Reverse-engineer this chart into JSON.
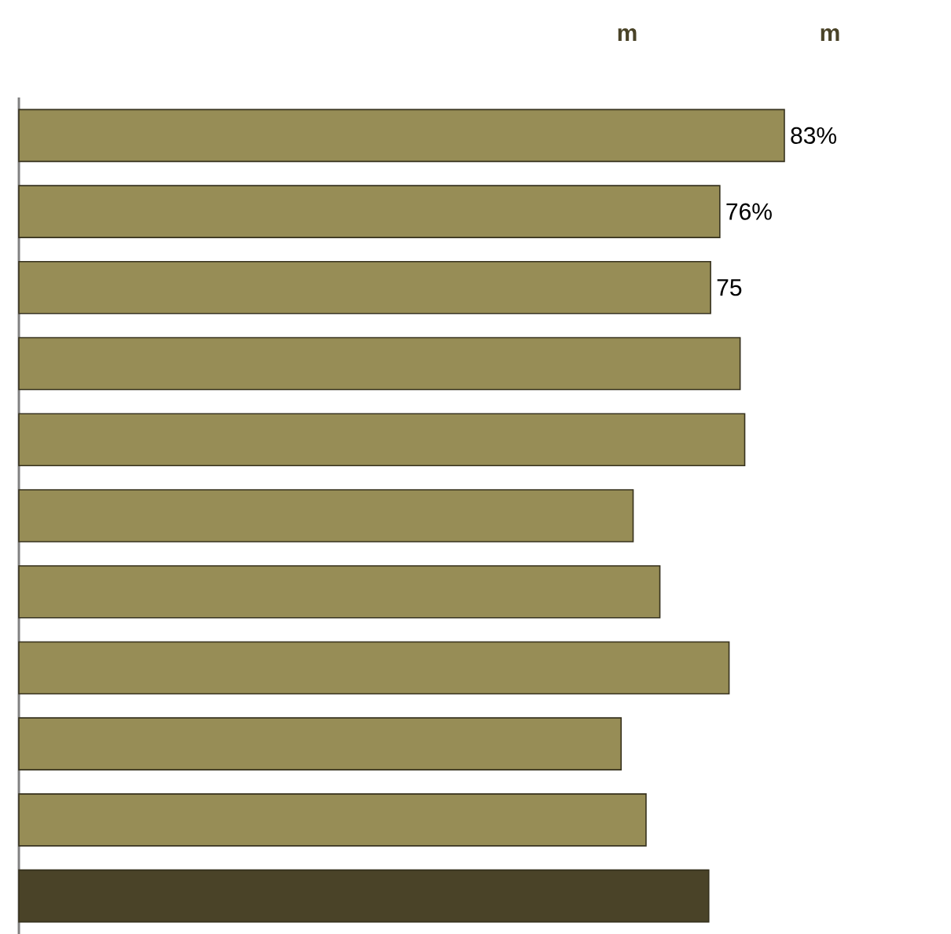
{
  "chart_data": {
    "type": "bar",
    "orientation": "horizontal",
    "categories": [
      null,
      null,
      null,
      null,
      null,
      null,
      null,
      null,
      null,
      null,
      null
    ],
    "values": [
      83,
      76,
      75,
      78.2,
      78.7,
      66.6,
      69.5,
      77,
      65.3,
      68,
      74.8
    ],
    "value_labels": [
      "83%",
      "76%",
      "75",
      null,
      null,
      null,
      null,
      null,
      null,
      null,
      null
    ],
    "colors": [
      "#978d56",
      "#978d56",
      "#978d56",
      "#978d56",
      "#978d56",
      "#978d56",
      "#978d56",
      "#978d56",
      "#978d56",
      "#978d56",
      "#4a4328"
    ],
    "annotations": [
      "m",
      "m"
    ]
  }
}
